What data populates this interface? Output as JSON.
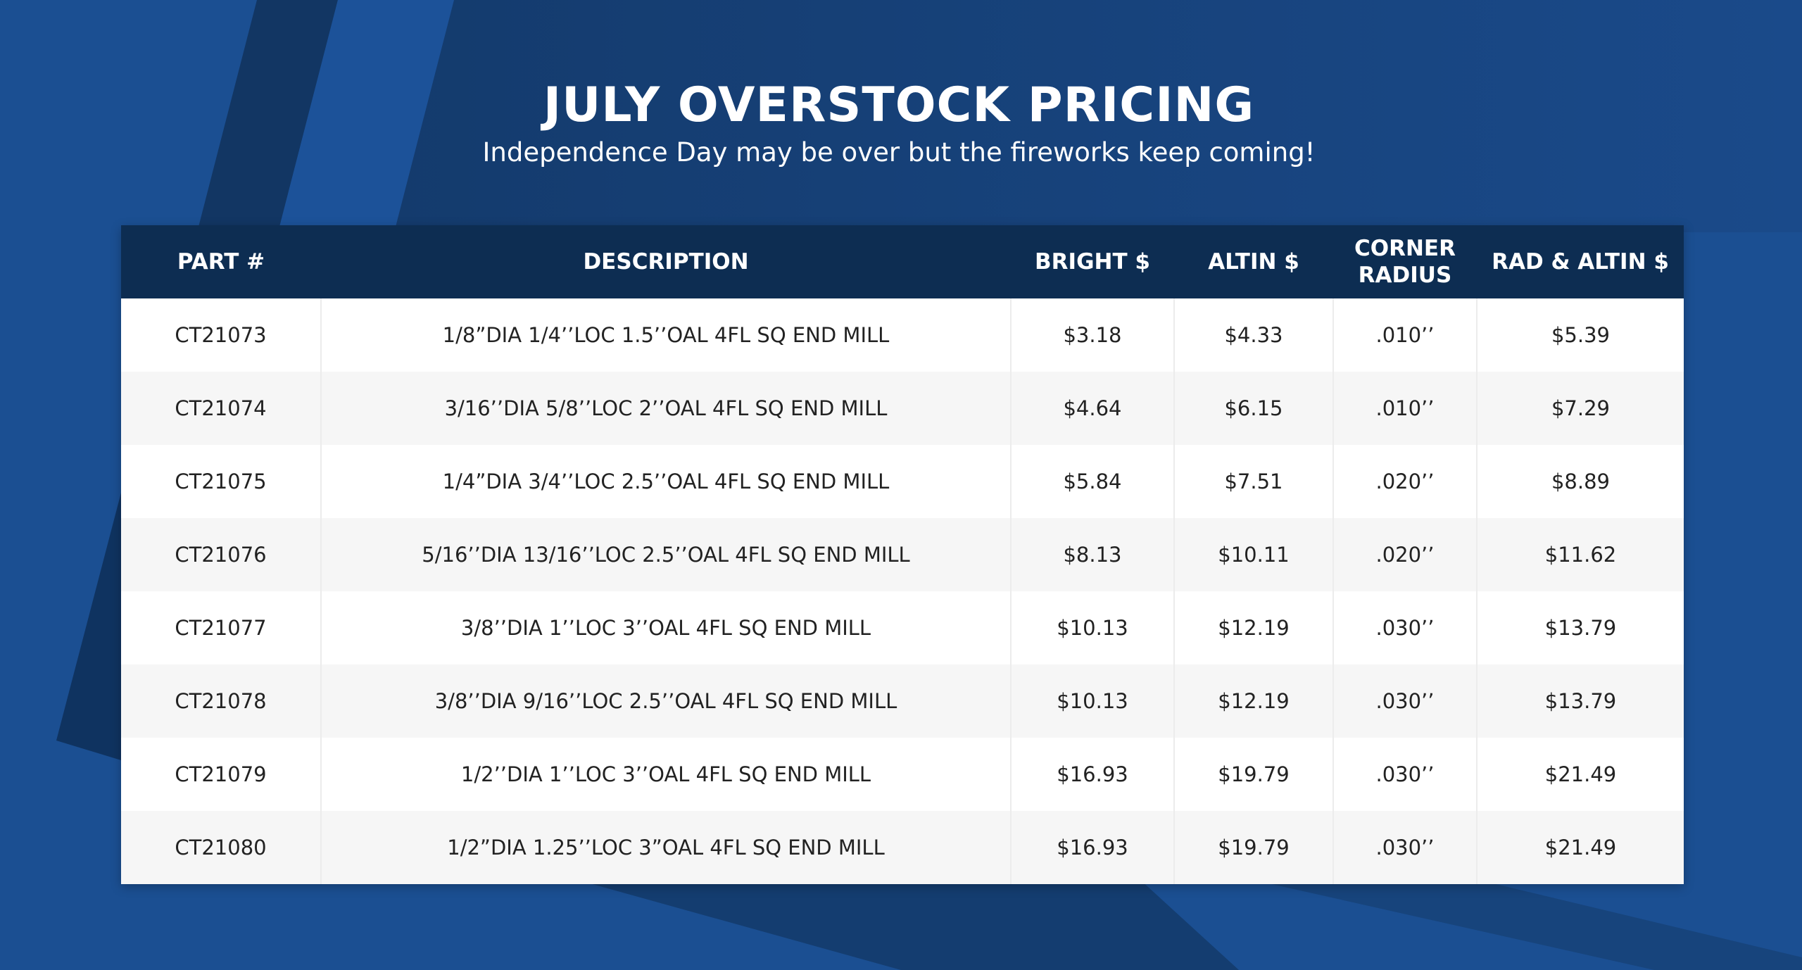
{
  "header": {
    "title": "JULY OVERSTOCK PRICING",
    "subtitle": "Independence Day may be over but the fireworks keep coming!"
  },
  "table": {
    "columns": {
      "part": "PART #",
      "description": "DESCRIPTION",
      "bright": "BRIGHT $",
      "altin": "ALTIN $",
      "corner_radius_line1": "CORNER",
      "corner_radius_line2": "RADIUS",
      "rad_altin": "RAD & ALTIN $"
    },
    "rows": [
      {
        "part": "CT21073",
        "description": "1/8”DIA 1/4’’LOC 1.5’’OAL 4FL SQ END MILL",
        "bright": "$3.18",
        "altin": "$4.33",
        "corner_radius": ".010’’",
        "rad_altin": "$5.39"
      },
      {
        "part": "CT21074",
        "description": "3/16’’DIA 5/8’’LOC 2’’OAL 4FL SQ END MILL",
        "bright": "$4.64",
        "altin": "$6.15",
        "corner_radius": ".010’’",
        "rad_altin": "$7.29"
      },
      {
        "part": "CT21075",
        "description": "1/4”DIA 3/4’’LOC 2.5’’OAL 4FL SQ END MILL",
        "bright": "$5.84",
        "altin": "$7.51",
        "corner_radius": ".020’’",
        "rad_altin": "$8.89"
      },
      {
        "part": "CT21076",
        "description": "5/16’’DIA 13/16’’LOC 2.5’’OAL 4FL SQ END MILL",
        "bright": "$8.13",
        "altin": "$10.11",
        "corner_radius": ".020’’",
        "rad_altin": "$11.62"
      },
      {
        "part": "CT21077",
        "description": "3/8’’DIA 1’’LOC 3’’OAL 4FL SQ END MILL",
        "bright": "$10.13",
        "altin": "$12.19",
        "corner_radius": ".030’’",
        "rad_altin": "$13.79"
      },
      {
        "part": "CT21078",
        "description": "3/8’’DIA 9/16’’LOC 2.5’’OAL 4FL SQ END MILL",
        "bright": "$10.13",
        "altin": "$12.19",
        "corner_radius": ".030’’",
        "rad_altin": "$13.79"
      },
      {
        "part": "CT21079",
        "description": "1/2’’DIA 1’’LOC 3’’OAL 4FL SQ END MILL",
        "bright": "$16.93",
        "altin": "$19.79",
        "corner_radius": ".030’’",
        "rad_altin": "$21.49"
      },
      {
        "part": "CT21080",
        "description": "1/2”DIA 1.25’’LOC 3”OAL 4FL SQ END MILL",
        "bright": "$16.93",
        "altin": "$19.79",
        "corner_radius": ".030’’",
        "rad_altin": "$21.49"
      }
    ]
  },
  "colors": {
    "background_blue": "#1b4f92",
    "dark_navy": "#0d2d52",
    "header_bg": "#0d2d52",
    "row_alt": "#f6f6f6"
  }
}
